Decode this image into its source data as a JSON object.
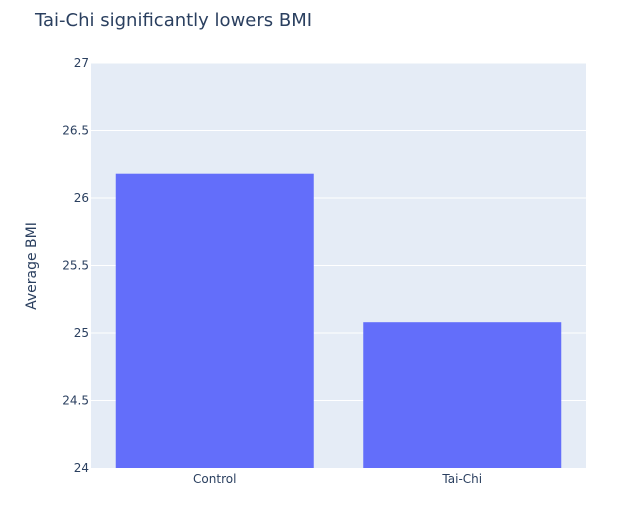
{
  "chart_data": {
    "type": "bar",
    "title": "Tai-Chi significantly lowers BMI",
    "xlabel": "",
    "ylabel": "Average BMI",
    "categories": [
      "Control",
      "Tai-Chi"
    ],
    "values": [
      26.18,
      25.08
    ],
    "ylim": [
      24,
      27
    ],
    "yticks": [
      24,
      24.5,
      25,
      25.5,
      26,
      26.5,
      27
    ],
    "ytick_labels": [
      "24",
      "24.5",
      "25",
      "25.5",
      "26",
      "26.5",
      "27"
    ],
    "grid": true,
    "legend": "none",
    "colors": {
      "bar": "#636efa",
      "plot_background": "#e5ecf6",
      "grid": "#ffffff",
      "text": "#2a3f5f"
    }
  }
}
